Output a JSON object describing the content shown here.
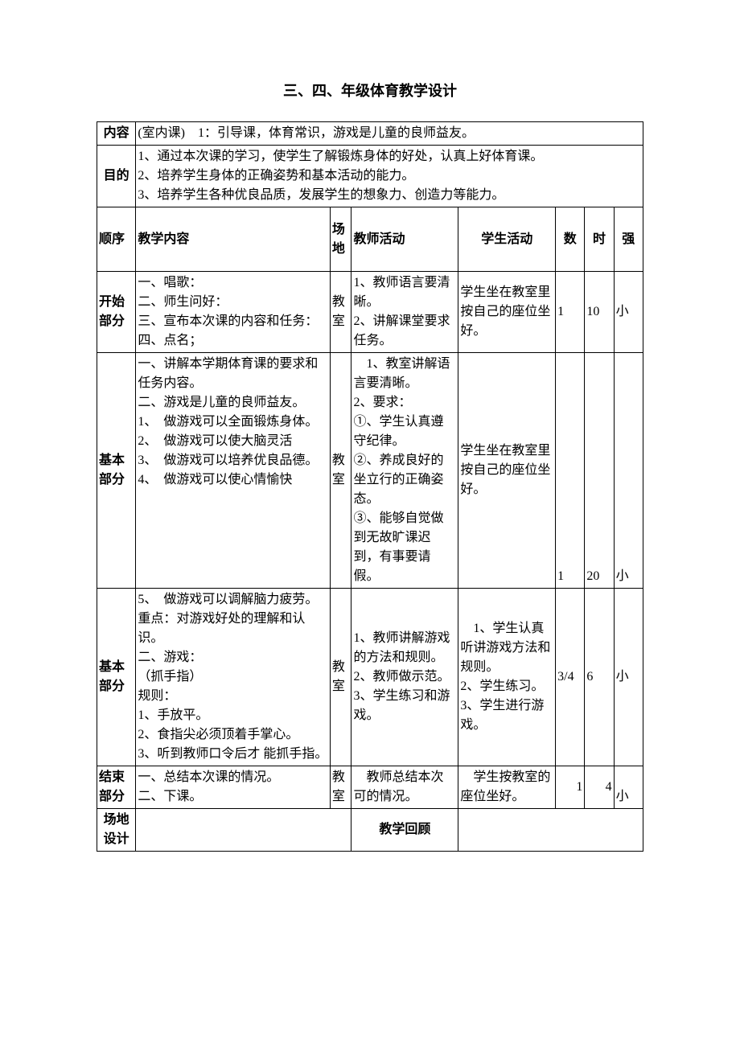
{
  "title": "三、四、年级体育教学设计",
  "rows": {
    "content_label": "内容",
    "content_value": "(室内课)　1：引导课，体育常识，游戏是儿童的良师益友。",
    "purpose_label": "目的",
    "purpose_value": "1、通过本次课的学习，使学生了解锻炼身体的好处，认真上好体育课。\n2、培养学生身体的正确姿势和基本活动的能力。\n3、培养学生各种优良品质，发展学生的想象力、创造力等能力。",
    "header": {
      "order": "顺序",
      "teaching": "教学内容",
      "place": "场地",
      "teacher": "教师活动",
      "student": "学生活动",
      "count": "数",
      "time": "时",
      "intensity": "强"
    },
    "start": {
      "label": "开始部分",
      "teaching": "一、唱歌：\n二、师生问好：\n三、宣布本次课的内容和任务：\n四、点名；",
      "place": "教室",
      "teacher": "1、教师语言要清晰。\n2、讲解课堂要求任务。",
      "student": "学生坐在教室里按自己的座位坐好。",
      "count": "1",
      "time": "10",
      "intensity": "小"
    },
    "basic1": {
      "label": "基本部分",
      "teaching": "一、讲解本学期体育课的要求和任务内容。\n二、游戏是儿童的良师益友。\n1、　做游戏可以全面锻炼身体。\n2、　做游戏可以使大脑灵活\n3、　做游戏可以培养优良品德。\n4、　做游戏可以使心情愉快",
      "place": "教室",
      "teacher": "　1、教室讲解语言要清晰。\n2、要求：\n①、学生认真遵守纪律。\n②、养成良好的坐立行的正确姿态。\n③、能够自觉做到无故旷课迟到，有事要请假。",
      "student": "学生坐在教室里按自己的座位坐好。",
      "count": "1",
      "time": "20",
      "intensity": "小"
    },
    "basic2": {
      "label": "基本部分",
      "teaching": "5、　做游戏可以调解脑力疲劳。\n重点：对游戏好处的理解和认识。\n二、游戏：\n（抓手指）\n规则：\n1、手放平。\n2、食指尖必须顶着手掌心。\n3、听到教师口令后才 能抓手指。",
      "place": "教室",
      "teacher": "1、教师讲解游戏的方法和规则。\n2、教师做示范。\n3、学生练习和游戏。",
      "student": "　1、学生认真听讲游戏方法和规则。\n2、学生练习。\n3、学生进行游戏。",
      "count": "3/4",
      "time": "6",
      "intensity": "小"
    },
    "end": {
      "label": "结束部分",
      "teaching": "一、总结本次课的情况。\n二、下课。",
      "place": "教室",
      "teacher": "　教师总结本次可的情况。",
      "student": "　学生按教室的座位坐好。",
      "count": "1",
      "time": "4",
      "intensity": "小"
    },
    "footer": {
      "venue_label": "场地设计",
      "review_label": "教学回顾"
    }
  }
}
